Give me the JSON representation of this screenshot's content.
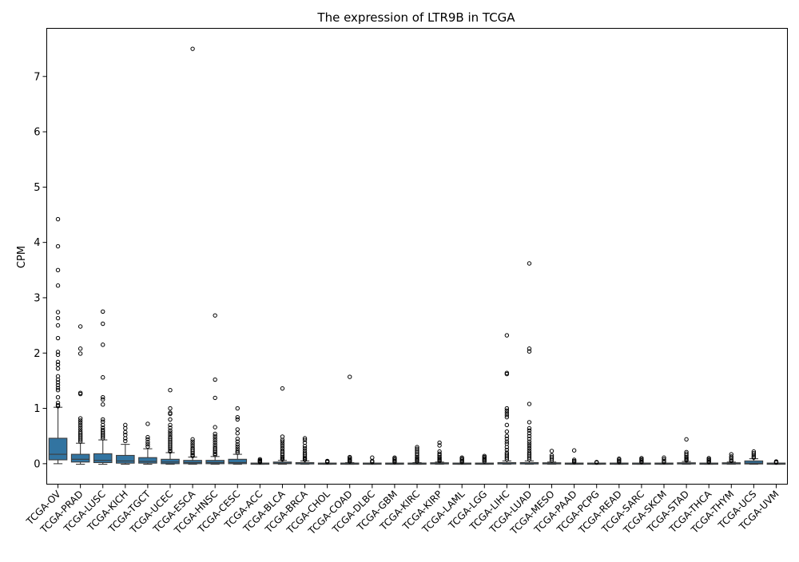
{
  "chart_data": {
    "type": "boxplot",
    "title": "The expression of LTR9B in TCGA",
    "xlabel": "",
    "ylabel": "CPM",
    "ylim": [
      -0.37,
      7.87
    ],
    "yticks": [
      0,
      1,
      2,
      3,
      4,
      5,
      6,
      7
    ],
    "box_color": "#3274a1",
    "categories": [
      "TCGA-OV",
      "TCGA-PRAD",
      "TCGA-LUSC",
      "TCGA-KICH",
      "TCGA-TGCT",
      "TCGA-UCEC",
      "TCGA-ESCA",
      "TCGA-HNSC",
      "TCGA-CESC",
      "TCGA-ACC",
      "TCGA-BLCA",
      "TCGA-BRCA",
      "TCGA-CHOL",
      "TCGA-COAD",
      "TCGA-DLBC",
      "TCGA-GBM",
      "TCGA-KIRC",
      "TCGA-KIRP",
      "TCGA-LAML",
      "TCGA-LGG",
      "TCGA-LIHC",
      "TCGA-LUAD",
      "TCGA-MESO",
      "TCGA-PAAD",
      "TCGA-PCPG",
      "TCGA-READ",
      "TCGA-SARC",
      "TCGA-SKCM",
      "TCGA-STAD",
      "TCGA-THCA",
      "TCGA-THYM",
      "TCGA-UCS",
      "TCGA-UVM"
    ],
    "boxes": [
      {
        "q1": 0.07,
        "median": 0.17,
        "q3": 0.46,
        "wlo": 0.0,
        "whi": 1.02,
        "fliers": [
          4.42,
          3.93,
          3.5,
          3.22,
          2.74,
          2.63,
          2.5,
          2.27,
          2.02,
          1.97,
          1.84,
          1.79,
          1.72,
          1.58,
          1.52,
          1.47,
          1.42,
          1.37,
          1.33,
          1.2,
          1.1,
          1.06,
          1.04
        ]
      },
      {
        "q1": 0.03,
        "median": 0.08,
        "q3": 0.17,
        "wlo": -0.01,
        "whi": 0.37,
        "fliers": [
          2.48,
          2.08,
          1.99,
          1.28,
          1.26,
          0.82,
          0.78,
          0.74,
          0.7,
          0.66,
          0.62,
          0.58,
          0.55,
          0.52,
          0.49,
          0.46,
          0.43,
          0.4
        ]
      },
      {
        "q1": 0.02,
        "median": 0.06,
        "q3": 0.18,
        "wlo": -0.01,
        "whi": 0.43,
        "fliers": [
          2.75,
          2.53,
          2.15,
          1.56,
          1.2,
          1.16,
          1.07,
          0.8,
          0.76,
          0.7,
          0.65,
          0.61,
          0.58,
          0.55,
          0.52,
          0.49,
          0.46
        ]
      },
      {
        "q1": 0.01,
        "median": 0.05,
        "q3": 0.15,
        "wlo": -0.01,
        "whi": 0.35,
        "fliers": [
          0.7,
          0.64,
          0.57,
          0.52,
          0.46,
          0.41
        ]
      },
      {
        "q1": 0.01,
        "median": 0.04,
        "q3": 0.11,
        "wlo": -0.01,
        "whi": 0.27,
        "fliers": [
          0.72,
          0.48,
          0.44,
          0.39,
          0.35,
          0.31
        ]
      },
      {
        "q1": 0.0,
        "median": 0.03,
        "q3": 0.08,
        "wlo": -0.01,
        "whi": 0.2,
        "fliers": [
          1.33,
          1.0,
          0.92,
          0.9,
          0.8,
          0.7,
          0.65,
          0.6,
          0.56,
          0.52,
          0.48,
          0.45,
          0.42,
          0.39,
          0.36,
          0.33,
          0.3,
          0.27,
          0.24,
          0.22
        ]
      },
      {
        "q1": 0.0,
        "median": 0.02,
        "q3": 0.06,
        "wlo": -0.01,
        "whi": 0.12,
        "fliers": [
          7.5,
          0.44,
          0.4,
          0.36,
          0.32,
          0.28,
          0.25,
          0.22,
          0.19,
          0.16,
          0.14
        ]
      },
      {
        "q1": 0.0,
        "median": 0.02,
        "q3": 0.06,
        "wlo": -0.01,
        "whi": 0.13,
        "fliers": [
          2.68,
          1.52,
          1.19,
          0.66,
          0.54,
          0.5,
          0.46,
          0.42,
          0.38,
          0.34,
          0.3,
          0.27,
          0.24,
          0.21,
          0.18,
          0.16
        ]
      },
      {
        "q1": 0.0,
        "median": 0.02,
        "q3": 0.08,
        "wlo": -0.01,
        "whi": 0.17,
        "fliers": [
          1.0,
          0.84,
          0.8,
          0.62,
          0.55,
          0.45,
          0.4,
          0.35,
          0.31,
          0.27,
          0.23,
          0.2
        ]
      },
      {
        "q1": -0.01,
        "median": -0.005,
        "q3": 0.0,
        "wlo": -0.01,
        "whi": 0.01,
        "fliers": [
          0.08,
          0.06,
          0.05,
          0.04,
          0.03
        ]
      },
      {
        "q1": 0.0,
        "median": 0.01,
        "q3": 0.03,
        "wlo": -0.01,
        "whi": 0.06,
        "fliers": [
          1.36,
          0.49,
          0.43,
          0.4,
          0.36,
          0.32,
          0.28,
          0.24,
          0.21,
          0.18,
          0.15,
          0.12,
          0.1,
          0.08
        ]
      },
      {
        "q1": -0.005,
        "median": 0.0,
        "q3": 0.02,
        "wlo": -0.01,
        "whi": 0.05,
        "fliers": [
          0.46,
          0.43,
          0.38,
          0.32,
          0.28,
          0.24,
          0.2,
          0.17,
          0.14,
          0.11,
          0.09,
          0.07
        ]
      },
      {
        "q1": -0.01,
        "median": -0.005,
        "q3": 0.0,
        "wlo": -0.01,
        "whi": 0.01,
        "fliers": [
          0.05,
          0.04,
          0.03
        ]
      },
      {
        "q1": -0.01,
        "median": -0.005,
        "q3": 0.0,
        "wlo": -0.01,
        "whi": 0.02,
        "fliers": [
          1.57,
          0.12,
          0.1,
          0.08,
          0.06,
          0.05,
          0.04
        ]
      },
      {
        "q1": -0.01,
        "median": -0.005,
        "q3": 0.0,
        "wlo": -0.01,
        "whi": 0.01,
        "fliers": [
          0.11,
          0.05,
          0.03
        ]
      },
      {
        "q1": -0.01,
        "median": -0.005,
        "q3": 0.0,
        "wlo": -0.01,
        "whi": 0.01,
        "fliers": [
          0.11,
          0.09,
          0.07,
          0.05,
          0.03
        ]
      },
      {
        "q1": -0.01,
        "median": -0.005,
        "q3": 0.0,
        "wlo": -0.01,
        "whi": 0.02,
        "fliers": [
          0.3,
          0.27,
          0.24,
          0.21,
          0.18,
          0.15,
          0.12,
          0.1,
          0.08,
          0.06,
          0.04
        ]
      },
      {
        "q1": -0.005,
        "median": 0.0,
        "q3": 0.01,
        "wlo": -0.01,
        "whi": 0.03,
        "fliers": [
          0.38,
          0.33,
          0.22,
          0.18,
          0.15,
          0.12,
          0.1,
          0.08,
          0.06,
          0.05
        ]
      },
      {
        "q1": -0.01,
        "median": -0.005,
        "q3": 0.0,
        "wlo": -0.01,
        "whi": 0.01,
        "fliers": [
          0.11,
          0.09,
          0.07,
          0.05,
          0.03
        ]
      },
      {
        "q1": -0.01,
        "median": -0.005,
        "q3": 0.0,
        "wlo": -0.01,
        "whi": 0.01,
        "fliers": [
          0.14,
          0.12,
          0.1,
          0.08,
          0.06,
          0.04
        ]
      },
      {
        "q1": -0.005,
        "median": 0.0,
        "q3": 0.02,
        "wlo": -0.01,
        "whi": 0.05,
        "fliers": [
          2.32,
          1.64,
          1.62,
          1.0,
          0.96,
          0.92,
          0.88,
          0.84,
          0.7,
          0.58,
          0.5,
          0.45,
          0.4,
          0.36,
          0.3,
          0.25,
          0.2,
          0.17,
          0.14,
          0.11,
          0.08
        ]
      },
      {
        "q1": -0.005,
        "median": 0.0,
        "q3": 0.02,
        "wlo": -0.01,
        "whi": 0.05,
        "fliers": [
          3.62,
          2.08,
          2.03,
          1.08,
          0.75,
          0.64,
          0.6,
          0.55,
          0.5,
          0.45,
          0.4,
          0.36,
          0.32,
          0.28,
          0.24,
          0.2,
          0.17,
          0.14,
          0.11,
          0.08
        ]
      },
      {
        "q1": -0.005,
        "median": 0.0,
        "q3": 0.01,
        "wlo": -0.01,
        "whi": 0.03,
        "fliers": [
          0.23,
          0.15,
          0.12,
          0.09,
          0.06
        ]
      },
      {
        "q1": -0.01,
        "median": -0.005,
        "q3": 0.0,
        "wlo": -0.01,
        "whi": 0.01,
        "fliers": [
          0.24,
          0.07,
          0.05,
          0.03
        ]
      },
      {
        "q1": -0.01,
        "median": -0.005,
        "q3": 0.0,
        "wlo": -0.01,
        "whi": 0.01,
        "fliers": [
          0.03,
          0.02
        ]
      },
      {
        "q1": -0.01,
        "median": -0.005,
        "q3": 0.0,
        "wlo": -0.01,
        "whi": 0.01,
        "fliers": [
          0.09,
          0.07,
          0.05,
          0.03
        ]
      },
      {
        "q1": -0.01,
        "median": -0.005,
        "q3": 0.0,
        "wlo": -0.01,
        "whi": 0.01,
        "fliers": [
          0.1,
          0.08,
          0.06,
          0.04,
          0.03
        ]
      },
      {
        "q1": -0.01,
        "median": -0.005,
        "q3": 0.0,
        "wlo": -0.01,
        "whi": 0.01,
        "fliers": [
          0.11,
          0.08,
          0.05,
          0.03
        ]
      },
      {
        "q1": -0.005,
        "median": 0.0,
        "q3": 0.01,
        "wlo": -0.01,
        "whi": 0.04,
        "fliers": [
          0.44,
          0.21,
          0.18,
          0.15,
          0.12,
          0.1,
          0.08,
          0.06
        ]
      },
      {
        "q1": -0.01,
        "median": -0.005,
        "q3": 0.0,
        "wlo": -0.01,
        "whi": 0.01,
        "fliers": [
          0.1,
          0.08,
          0.06,
          0.04,
          0.03
        ]
      },
      {
        "q1": -0.005,
        "median": 0.0,
        "q3": 0.01,
        "wlo": -0.01,
        "whi": 0.03,
        "fliers": [
          0.17,
          0.13,
          0.1,
          0.07,
          0.05
        ]
      },
      {
        "q1": -0.005,
        "median": 0.01,
        "q3": 0.05,
        "wlo": -0.01,
        "whi": 0.09,
        "fliers": [
          0.22,
          0.19,
          0.16,
          0.13,
          0.11
        ]
      },
      {
        "q1": -0.01,
        "median": -0.005,
        "q3": 0.0,
        "wlo": -0.01,
        "whi": 0.01,
        "fliers": [
          0.04,
          0.03,
          0.02
        ]
      }
    ]
  }
}
